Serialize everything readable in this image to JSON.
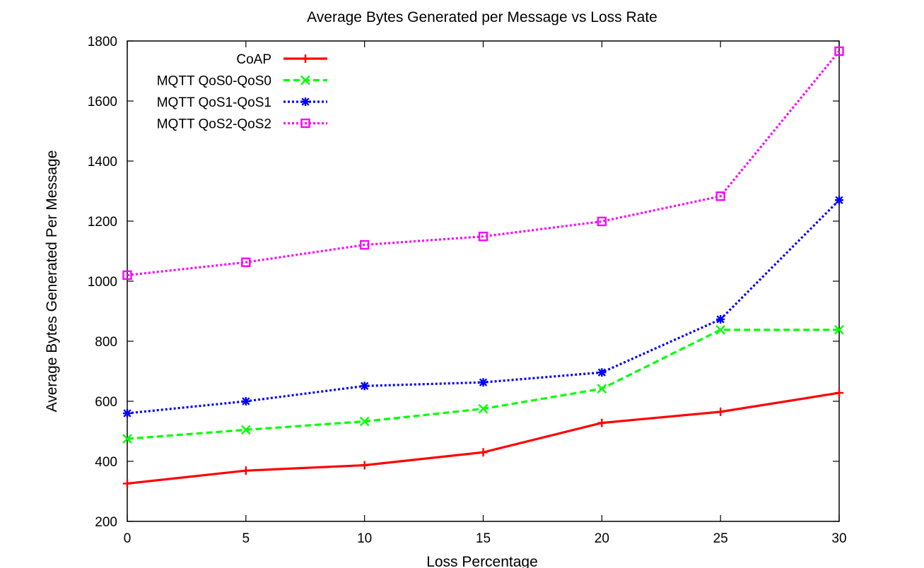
{
  "chart_data": {
    "type": "line",
    "title": "Average Bytes Generated per Message vs Loss Rate",
    "xlabel": "Loss Percentage",
    "ylabel": "Average Bytes Generated Per Message",
    "x": [
      0,
      5,
      10,
      15,
      20,
      25,
      30
    ],
    "xlim": [
      0,
      30
    ],
    "ylim": [
      200,
      1800
    ],
    "xticks": [
      "0",
      "5",
      "10",
      "15",
      "20",
      "25",
      "30"
    ],
    "yticks": [
      "200",
      "400",
      "600",
      "800",
      "1000",
      "1200",
      "1400",
      "1600",
      "1800"
    ],
    "grid": false,
    "legend_position": "top-left",
    "series": [
      {
        "name": "CoAP",
        "color": "#ff0000",
        "line_style": "solid",
        "marker": "plus",
        "values": [
          326,
          369,
          387,
          430,
          528,
          565,
          628
        ]
      },
      {
        "name": "MQTT QoS0-QoS0",
        "color": "#00ff00",
        "line_style": "dashed",
        "marker": "cross",
        "values": [
          475,
          505,
          533,
          575,
          642,
          838,
          838
        ]
      },
      {
        "name": "MQTT QoS1-QoS1",
        "color": "#0000ff",
        "line_style": "dotted",
        "marker": "star",
        "values": [
          560,
          600,
          651,
          663,
          696,
          873,
          1270
        ]
      },
      {
        "name": "MQTT QoS2-QoS2",
        "color": "#ff00ff",
        "line_style": "dotted",
        "marker": "square",
        "values": [
          1020,
          1063,
          1121,
          1149,
          1199,
          1283,
          1766
        ]
      }
    ]
  }
}
